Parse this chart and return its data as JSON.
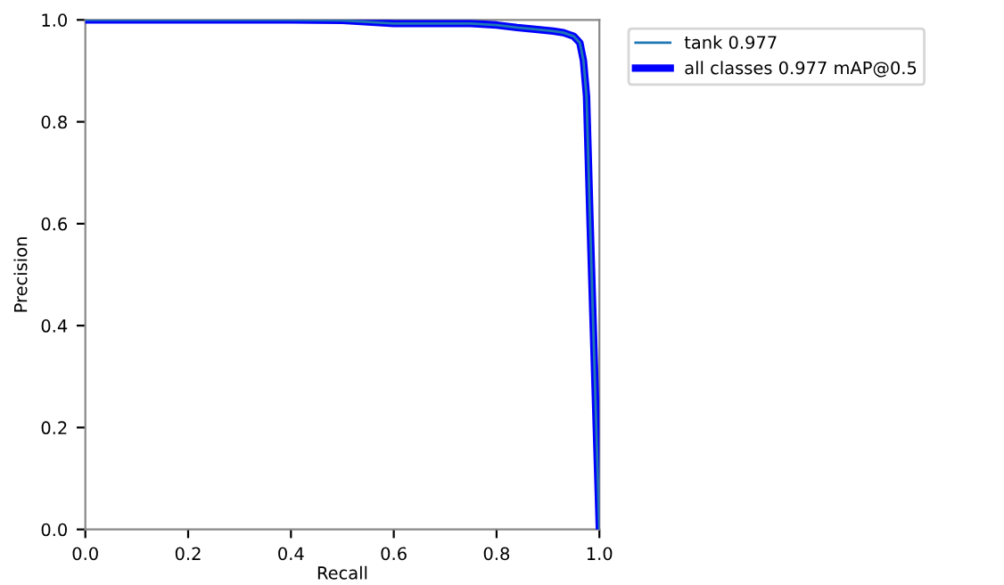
{
  "chart_data": {
    "type": "line",
    "xlabel": "Recall",
    "ylabel": "Precision",
    "x": [
      0.0,
      0.1,
      0.2,
      0.3,
      0.4,
      0.5,
      0.55,
      0.6,
      0.7,
      0.75,
      0.8,
      0.84,
      0.88,
      0.91,
      0.93,
      0.95,
      0.962,
      0.969,
      0.975,
      0.982,
      0.988,
      0.994,
      1.0
    ],
    "series": [
      {
        "name": "tank 0.977",
        "color": "#1f77b4",
        "values": [
          1.0,
          1.0,
          1.0,
          1.0,
          1.0,
          0.999,
          0.996,
          0.993,
          0.993,
          0.993,
          0.99,
          0.985,
          0.981,
          0.978,
          0.975,
          0.968,
          0.955,
          0.92,
          0.85,
          0.6,
          0.4,
          0.2,
          0.0
        ]
      },
      {
        "name": "all classes 0.977 mAP@0.5",
        "color": "#0000ff",
        "values": [
          1.0,
          1.0,
          1.0,
          1.0,
          1.0,
          0.999,
          0.996,
          0.993,
          0.993,
          0.993,
          0.99,
          0.985,
          0.981,
          0.978,
          0.975,
          0.968,
          0.955,
          0.92,
          0.85,
          0.6,
          0.4,
          0.2,
          0.0
        ]
      }
    ],
    "xlim": [
      0.0,
      1.0
    ],
    "ylim": [
      0.0,
      1.0
    ],
    "xticks": [
      {
        "value": 0.0,
        "label": "0.0"
      },
      {
        "value": 0.2,
        "label": "0.2"
      },
      {
        "value": 0.4,
        "label": "0.4"
      },
      {
        "value": 0.6,
        "label": "0.6"
      },
      {
        "value": 0.8,
        "label": "0.8"
      },
      {
        "value": 1.0,
        "label": "1.0"
      }
    ],
    "yticks": [
      {
        "value": 0.0,
        "label": "0.0"
      },
      {
        "value": 0.2,
        "label": "0.2"
      },
      {
        "value": 0.4,
        "label": "0.4"
      },
      {
        "value": 0.6,
        "label": "0.6"
      },
      {
        "value": 0.8,
        "label": "0.8"
      },
      {
        "value": 1.0,
        "label": "1.0"
      }
    ],
    "grid": false,
    "legend": "top right"
  }
}
